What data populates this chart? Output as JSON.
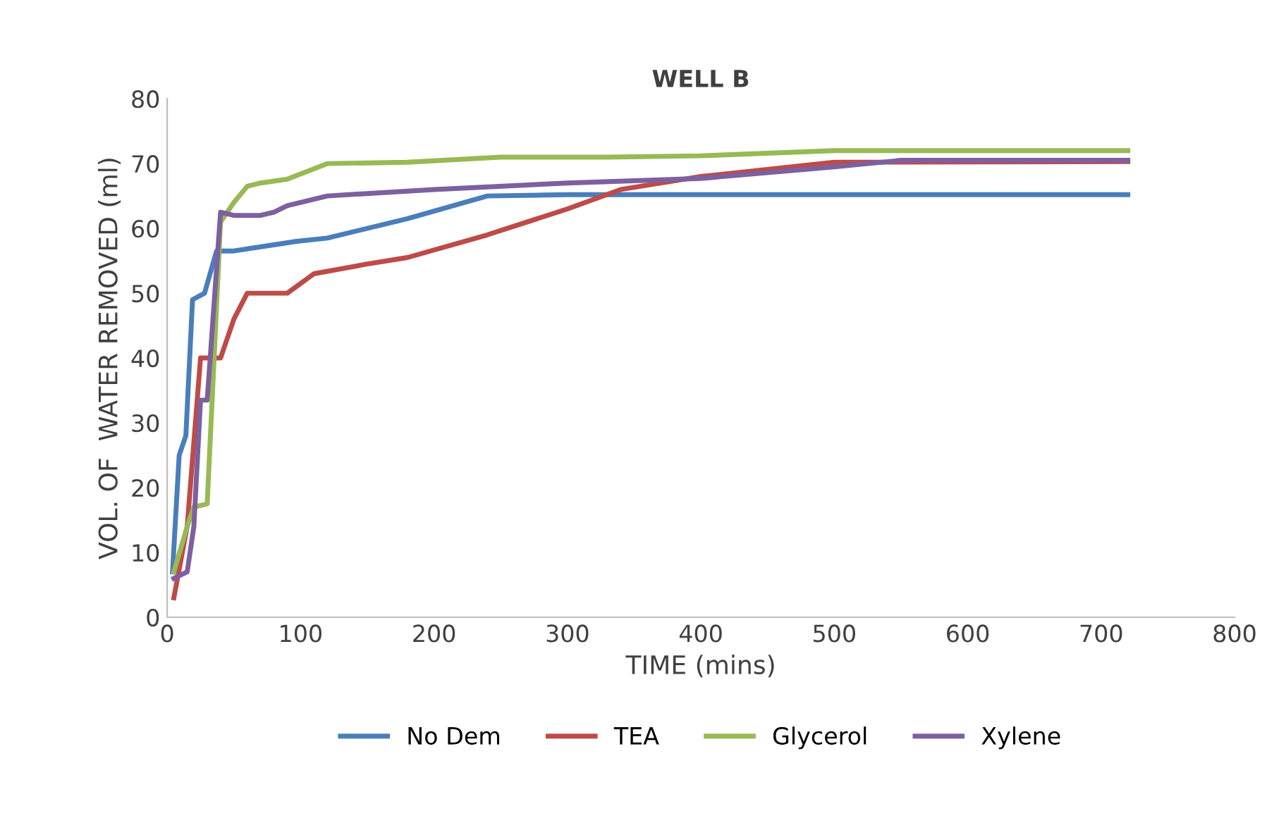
{
  "chart_data": {
    "type": "line",
    "title": "WELL B",
    "xlabel": "TIME (mins)",
    "ylabel": "VOL. OF  WATER REMOVED (ml)",
    "xlim": [
      0,
      800
    ],
    "xticks": [
      0,
      100,
      200,
      300,
      400,
      500,
      600,
      700,
      800
    ],
    "ylim": [
      0,
      80
    ],
    "yticks": [
      0,
      10,
      20,
      30,
      40,
      50,
      60,
      70,
      80
    ],
    "grid": false,
    "legend": "bottom",
    "line_style": "solid",
    "marker": "none",
    "series": [
      {
        "name": "No Dem",
        "color": "#4a7ebb",
        "x": [
          4,
          9,
          14,
          19,
          28,
          37,
          49,
          65,
          97,
          120,
          180,
          240,
          300,
          720
        ],
        "values": [
          7,
          25,
          28,
          49,
          50,
          56.5,
          56.5,
          57,
          58,
          58.5,
          61.5,
          65,
          65.2,
          65.2
        ]
      },
      {
        "name": "TEA",
        "color": "#be4b48",
        "x": [
          5,
          15,
          20,
          25,
          30,
          40,
          50,
          60,
          70,
          90,
          110,
          150,
          180,
          240,
          300,
          340,
          400,
          500,
          720
        ],
        "values": [
          3,
          14,
          27,
          40,
          40,
          40,
          46,
          50,
          50,
          50,
          53,
          54.5,
          55.5,
          59,
          63,
          66,
          68,
          70.2,
          70.3
        ]
      },
      {
        "name": "Glycerol",
        "color": "#98b954",
        "x": [
          5,
          15,
          20,
          30,
          40,
          50,
          60,
          70,
          90,
          120,
          180,
          250,
          330,
          400,
          500,
          720
        ],
        "values": [
          7,
          14,
          17,
          17.5,
          61,
          64,
          66.5,
          67,
          67.6,
          70,
          70.2,
          71,
          71,
          71.2,
          72,
          72
        ]
      },
      {
        "name": "Xylene",
        "color": "#7d60a0",
        "x": [
          5,
          15,
          20,
          25,
          30,
          40,
          50,
          70,
          80,
          90,
          120,
          200,
          300,
          400,
          500,
          550,
          720
        ],
        "values": [
          6,
          7,
          14,
          33.5,
          33.5,
          62.5,
          62,
          62,
          62.5,
          63.5,
          65,
          66,
          67,
          67.7,
          69.5,
          70.5,
          70.5
        ]
      }
    ]
  }
}
